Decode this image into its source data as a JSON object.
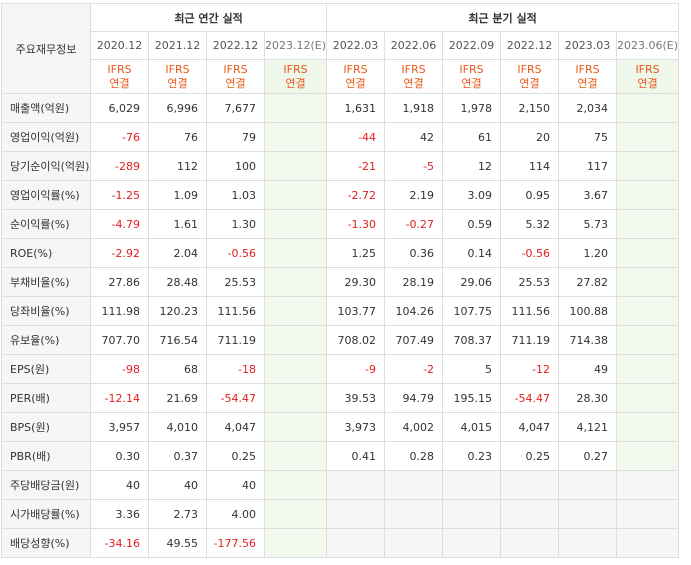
{
  "header": {
    "label": "주요재무정보",
    "annual_title": "최근 연간 실적",
    "quarterly_title": "최근 분기 실적",
    "annual_periods": [
      "2020.12",
      "2021.12",
      "2022.12",
      "2023.12(E)"
    ],
    "quarterly_periods": [
      "2022.03",
      "2022.06",
      "2022.09",
      "2022.12",
      "2023.03",
      "2023.06(E)"
    ],
    "ifrs": "IFRS",
    "basis": "연결"
  },
  "rows": [
    {
      "label": "매출액(억원)",
      "cells": [
        "6,029",
        "6,996",
        "7,677",
        "",
        "1,631",
        "1,918",
        "1,978",
        "2,150",
        "2,034",
        ""
      ],
      "group_start": true
    },
    {
      "label": "영업이익(억원)",
      "cells": [
        "-76",
        "76",
        "79",
        "",
        "-44",
        "42",
        "61",
        "20",
        "75",
        ""
      ]
    },
    {
      "label": "당기순이익(억원)",
      "cells": [
        "-289",
        "112",
        "100",
        "",
        "-21",
        "-5",
        "12",
        "114",
        "117",
        ""
      ]
    },
    {
      "label": "영업이익률(%)",
      "cells": [
        "-1.25",
        "1.09",
        "1.03",
        "",
        "-2.72",
        "2.19",
        "3.09",
        "0.95",
        "3.67",
        ""
      ],
      "group_start": true
    },
    {
      "label": "순이익률(%)",
      "cells": [
        "-4.79",
        "1.61",
        "1.30",
        "",
        "-1.30",
        "-0.27",
        "0.59",
        "5.32",
        "5.73",
        ""
      ]
    },
    {
      "label": "ROE(%)",
      "cells": [
        "-2.92",
        "2.04",
        "-0.56",
        "",
        "1.25",
        "0.36",
        "0.14",
        "-0.56",
        "1.20",
        ""
      ]
    },
    {
      "label": "부채비율(%)",
      "cells": [
        "27.86",
        "28.48",
        "25.53",
        "",
        "29.30",
        "28.19",
        "29.06",
        "25.53",
        "27.82",
        ""
      ],
      "group_start": true
    },
    {
      "label": "당좌비율(%)",
      "cells": [
        "111.98",
        "120.23",
        "111.56",
        "",
        "103.77",
        "104.26",
        "107.75",
        "111.56",
        "100.88",
        ""
      ]
    },
    {
      "label": "유보율(%)",
      "cells": [
        "707.70",
        "716.54",
        "711.19",
        "",
        "708.02",
        "707.49",
        "708.37",
        "711.19",
        "714.38",
        ""
      ]
    },
    {
      "label": "EPS(원)",
      "cells": [
        "-98",
        "68",
        "-18",
        "",
        "-9",
        "-2",
        "5",
        "-12",
        "49",
        ""
      ],
      "group_start": true
    },
    {
      "label": "PER(배)",
      "cells": [
        "-12.14",
        "21.69",
        "-54.47",
        "",
        "39.53",
        "94.79",
        "195.15",
        "-54.47",
        "28.30",
        ""
      ]
    },
    {
      "label": "BPS(원)",
      "cells": [
        "3,957",
        "4,010",
        "4,047",
        "",
        "3,973",
        "4,002",
        "4,015",
        "4,047",
        "4,121",
        ""
      ]
    },
    {
      "label": "PBR(배)",
      "cells": [
        "0.30",
        "0.37",
        "0.25",
        "",
        "0.41",
        "0.28",
        "0.23",
        "0.25",
        "0.27",
        ""
      ]
    },
    {
      "label": "주당배당금(원)",
      "cells": [
        "40",
        "40",
        "40",
        "",
        null,
        null,
        null,
        null,
        null,
        null
      ],
      "group_start": true
    },
    {
      "label": "시가배당률(%)",
      "cells": [
        "3.36",
        "2.73",
        "4.00",
        "",
        null,
        null,
        null,
        null,
        null,
        null
      ]
    },
    {
      "label": "배당성향(%)",
      "cells": [
        "-34.16",
        "49.55",
        "-177.56",
        "",
        null,
        null,
        null,
        null,
        null,
        null
      ]
    }
  ],
  "colors": {
    "negative": "#e31e1e",
    "ifrs": "#e85b1a",
    "estimate_bg": "#f1f8ee"
  }
}
